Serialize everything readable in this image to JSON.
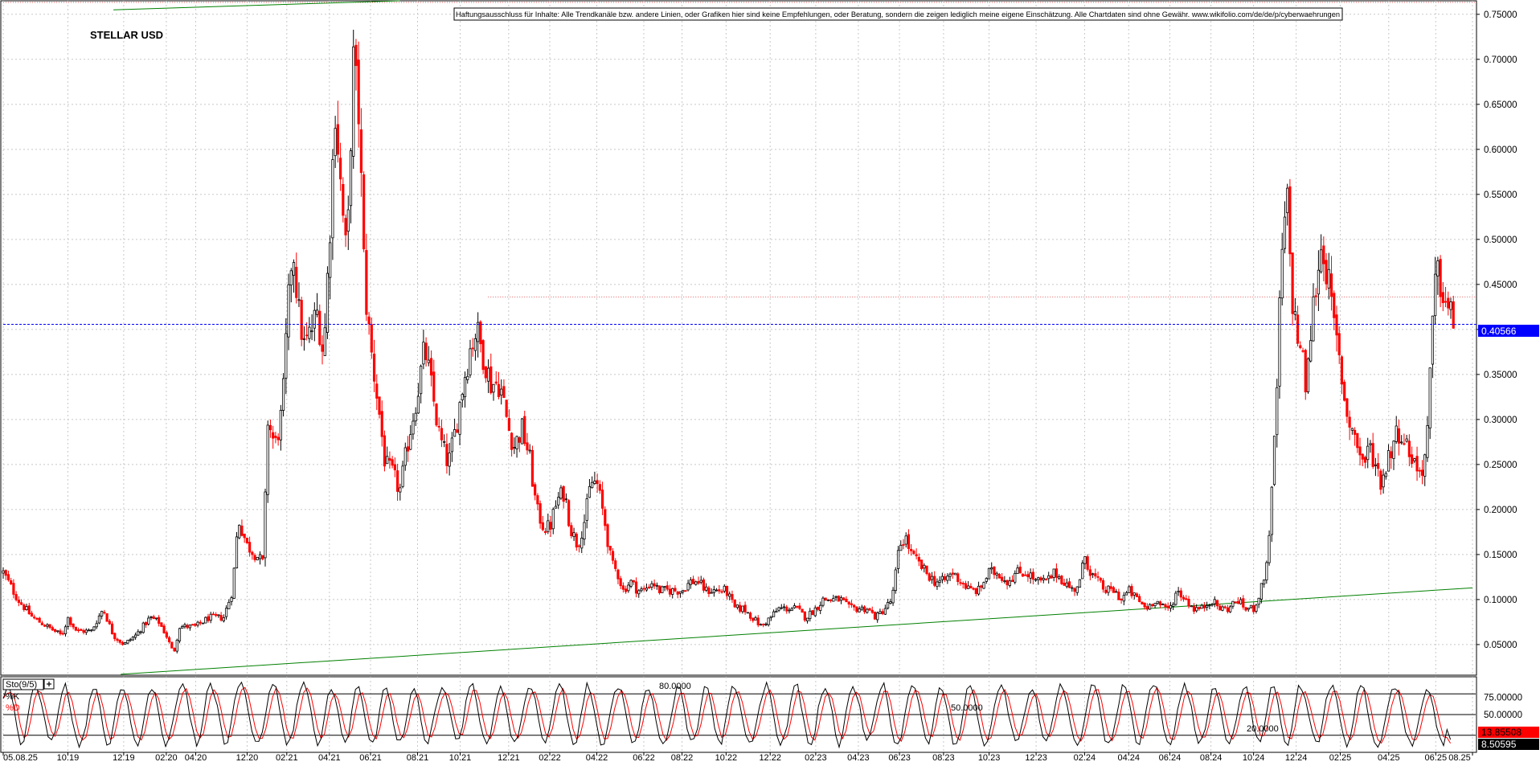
{
  "chart_data": [
    {
      "type": "candlestick",
      "title": "STELLAR USD",
      "disclaimer": "Haftungsausschluss für Inhalte: Alle Trendkanäle bzw. andere Linien, oder Grafiken hier sind keine Empfehlungen, oder Beratung, sondern die zeigen lediglich meine eigene Einschätzung. Alle Chartdaten sind ohne Gewähr. www.wikifolio.com/de/de/p/cyberwaehrungen",
      "y_axis_ticks": [
        "0.75000",
        "0.70000",
        "0.65000",
        "0.60000",
        "0.55000",
        "0.50000",
        "0.45000",
        "0.40000",
        "0.35000",
        "0.30000",
        "0.25000",
        "0.20000",
        "0.15000",
        "0.10000",
        "0.05000"
      ],
      "ylim": [
        0.016,
        0.765
      ],
      "x_axis_ticks": [
        "05.08.25",
        "10.19",
        "12.19",
        "02.20",
        "04.20",
        "12.20",
        "02.21",
        "04.21",
        "06.21",
        "08.21",
        "10.21",
        "12.21",
        "02.22",
        "04.22",
        "06.22",
        "08.22",
        "10.22",
        "12.22",
        "02.23",
        "04.23",
        "06.23",
        "08.23",
        "10.23",
        "12.23",
        "02.24",
        "04.24",
        "06.24",
        "08.24",
        "10.24",
        "12.24",
        "02.25",
        "04.25",
        "06.25",
        "08.25"
      ],
      "x_tick_positions": [
        0.0,
        0.044,
        0.082,
        0.111,
        0.131,
        0.166,
        0.193,
        0.222,
        0.25,
        0.282,
        0.311,
        0.344,
        0.372,
        0.404,
        0.436,
        0.462,
        0.492,
        0.522,
        0.553,
        0.582,
        0.61,
        0.64,
        0.671,
        0.703,
        0.736,
        0.766,
        0.794,
        0.822,
        0.851,
        0.88,
        0.91,
        0.943,
        0.975,
        1.0
      ],
      "current_price_label": "0.40566",
      "current_price": 0.40566,
      "reference_level": 0.436,
      "close_series": [
        [
          0.0,
          0.13
        ],
        [
          0.01,
          0.1
        ],
        [
          0.02,
          0.08
        ],
        [
          0.03,
          0.07
        ],
        [
          0.04,
          0.06
        ],
        [
          0.044,
          0.08
        ],
        [
          0.05,
          0.065
        ],
        [
          0.06,
          0.065
        ],
        [
          0.068,
          0.09
        ],
        [
          0.075,
          0.06
        ],
        [
          0.082,
          0.05
        ],
        [
          0.09,
          0.06
        ],
        [
          0.1,
          0.08
        ],
        [
          0.106,
          0.075
        ],
        [
          0.111,
          0.06
        ],
        [
          0.116,
          0.04
        ],
        [
          0.12,
          0.07
        ],
        [
          0.131,
          0.07
        ],
        [
          0.14,
          0.08
        ],
        [
          0.15,
          0.08
        ],
        [
          0.156,
          0.11
        ],
        [
          0.16,
          0.19
        ],
        [
          0.166,
          0.16
        ],
        [
          0.172,
          0.15
        ],
        [
          0.177,
          0.14
        ],
        [
          0.18,
          0.3
        ],
        [
          0.185,
          0.27
        ],
        [
          0.19,
          0.31
        ],
        [
          0.193,
          0.4
        ],
        [
          0.197,
          0.5
        ],
        [
          0.201,
          0.42
        ],
        [
          0.205,
          0.38
        ],
        [
          0.21,
          0.4
        ],
        [
          0.214,
          0.42
        ],
        [
          0.218,
          0.37
        ],
        [
          0.222,
          0.5
        ],
        [
          0.226,
          0.65
        ],
        [
          0.23,
          0.55
        ],
        [
          0.234,
          0.47
        ],
        [
          0.238,
          0.7
        ],
        [
          0.242,
          0.64
        ],
        [
          0.246,
          0.45
        ],
        [
          0.25,
          0.38
        ],
        [
          0.255,
          0.32
        ],
        [
          0.26,
          0.25
        ],
        [
          0.265,
          0.24
        ],
        [
          0.27,
          0.22
        ],
        [
          0.276,
          0.28
        ],
        [
          0.282,
          0.33
        ],
        [
          0.287,
          0.38
        ],
        [
          0.292,
          0.33
        ],
        [
          0.297,
          0.28
        ],
        [
          0.303,
          0.25
        ],
        [
          0.308,
          0.29
        ],
        [
          0.313,
          0.34
        ],
        [
          0.318,
          0.38
        ],
        [
          0.322,
          0.4
        ],
        [
          0.327,
          0.37
        ],
        [
          0.332,
          0.34
        ],
        [
          0.338,
          0.34
        ],
        [
          0.344,
          0.29
        ],
        [
          0.348,
          0.27
        ],
        [
          0.353,
          0.29
        ],
        [
          0.358,
          0.26
        ],
        [
          0.363,
          0.2
        ],
        [
          0.368,
          0.18
        ],
        [
          0.372,
          0.18
        ],
        [
          0.377,
          0.21
        ],
        [
          0.382,
          0.22
        ],
        [
          0.386,
          0.18
        ],
        [
          0.391,
          0.16
        ],
        [
          0.396,
          0.19
        ],
        [
          0.4,
          0.23
        ],
        [
          0.404,
          0.23
        ],
        [
          0.409,
          0.19
        ],
        [
          0.414,
          0.14
        ],
        [
          0.418,
          0.13
        ],
        [
          0.422,
          0.11
        ],
        [
          0.427,
          0.12
        ],
        [
          0.432,
          0.11
        ],
        [
          0.436,
          0.11
        ],
        [
          0.442,
          0.12
        ],
        [
          0.446,
          0.11
        ],
        [
          0.452,
          0.11
        ],
        [
          0.457,
          0.11
        ],
        [
          0.462,
          0.11
        ],
        [
          0.468,
          0.12
        ],
        [
          0.473,
          0.12
        ],
        [
          0.478,
          0.11
        ],
        [
          0.483,
          0.11
        ],
        [
          0.488,
          0.11
        ],
        [
          0.492,
          0.11
        ],
        [
          0.498,
          0.09
        ],
        [
          0.504,
          0.09
        ],
        [
          0.51,
          0.08
        ],
        [
          0.516,
          0.07
        ],
        [
          0.522,
          0.08
        ],
        [
          0.528,
          0.09
        ],
        [
          0.534,
          0.09
        ],
        [
          0.54,
          0.09
        ],
        [
          0.546,
          0.08
        ],
        [
          0.553,
          0.09
        ],
        [
          0.558,
          0.1
        ],
        [
          0.564,
          0.1
        ],
        [
          0.57,
          0.1
        ],
        [
          0.576,
          0.09
        ],
        [
          0.582,
          0.09
        ],
        [
          0.588,
          0.09
        ],
        [
          0.594,
          0.08
        ],
        [
          0.6,
          0.09
        ],
        [
          0.605,
          0.1
        ],
        [
          0.61,
          0.16
        ],
        [
          0.614,
          0.17
        ],
        [
          0.618,
          0.15
        ],
        [
          0.623,
          0.14
        ],
        [
          0.628,
          0.13
        ],
        [
          0.634,
          0.12
        ],
        [
          0.64,
          0.12
        ],
        [
          0.646,
          0.13
        ],
        [
          0.652,
          0.12
        ],
        [
          0.658,
          0.11
        ],
        [
          0.664,
          0.11
        ],
        [
          0.671,
          0.13
        ],
        [
          0.677,
          0.13
        ],
        [
          0.683,
          0.12
        ],
        [
          0.69,
          0.13
        ],
        [
          0.697,
          0.13
        ],
        [
          0.703,
          0.12
        ],
        [
          0.71,
          0.12
        ],
        [
          0.716,
          0.13
        ],
        [
          0.722,
          0.12
        ],
        [
          0.728,
          0.11
        ],
        [
          0.733,
          0.12
        ],
        [
          0.736,
          0.15
        ],
        [
          0.74,
          0.13
        ],
        [
          0.745,
          0.12
        ],
        [
          0.75,
          0.11
        ],
        [
          0.756,
          0.11
        ],
        [
          0.761,
          0.1
        ],
        [
          0.766,
          0.11
        ],
        [
          0.772,
          0.1
        ],
        [
          0.778,
          0.09
        ],
        [
          0.784,
          0.1
        ],
        [
          0.79,
          0.09
        ],
        [
          0.794,
          0.09
        ],
        [
          0.799,
          0.11
        ],
        [
          0.805,
          0.1
        ],
        [
          0.81,
          0.09
        ],
        [
          0.816,
          0.09
        ],
        [
          0.822,
          0.1
        ],
        [
          0.828,
          0.09
        ],
        [
          0.834,
          0.09
        ],
        [
          0.84,
          0.1
        ],
        [
          0.845,
          0.09
        ],
        [
          0.851,
          0.09
        ],
        [
          0.856,
          0.11
        ],
        [
          0.86,
          0.14
        ],
        [
          0.864,
          0.23
        ],
        [
          0.867,
          0.34
        ],
        [
          0.87,
          0.48
        ],
        [
          0.874,
          0.54
        ],
        [
          0.877,
          0.44
        ],
        [
          0.88,
          0.4
        ],
        [
          0.884,
          0.37
        ],
        [
          0.887,
          0.33
        ],
        [
          0.89,
          0.4
        ],
        [
          0.894,
          0.46
        ],
        [
          0.898,
          0.5
        ],
        [
          0.902,
          0.45
        ],
        [
          0.906,
          0.4
        ],
        [
          0.91,
          0.36
        ],
        [
          0.914,
          0.31
        ],
        [
          0.918,
          0.29
        ],
        [
          0.922,
          0.27
        ],
        [
          0.926,
          0.25
        ],
        [
          0.93,
          0.27
        ],
        [
          0.934,
          0.25
        ],
        [
          0.938,
          0.23
        ],
        [
          0.943,
          0.26
        ],
        [
          0.947,
          0.28
        ],
        [
          0.951,
          0.29
        ],
        [
          0.955,
          0.27
        ],
        [
          0.959,
          0.26
        ],
        [
          0.963,
          0.24
        ],
        [
          0.967,
          0.25
        ],
        [
          0.97,
          0.3
        ],
        [
          0.972,
          0.38
        ],
        [
          0.975,
          0.46
        ],
        [
          0.979,
          0.45
        ],
        [
          0.983,
          0.42
        ],
        [
          0.987,
          0.41
        ]
      ],
      "trendlines": [
        {
          "name": "upper",
          "points": [
            [
              0.075,
              0.755
            ],
            [
              0.27,
              0.765
            ]
          ]
        },
        {
          "name": "lower",
          "points": [
            [
              0.08,
              0.017
            ],
            [
              1.0,
              0.113
            ]
          ]
        }
      ]
    },
    {
      "type": "line",
      "indicator_label": "Sto(9/5)",
      "series": [
        {
          "name": "%K",
          "color": "#000000"
        },
        {
          "name": "%D",
          "color": "#ff0000"
        }
      ],
      "levels": [
        {
          "value": 80,
          "label": "80.0000"
        },
        {
          "value": 50,
          "label": "50.0000"
        },
        {
          "value": 20,
          "label": "20.0000"
        }
      ],
      "y_axis_ticks": [
        "75.00000",
        "50.00000",
        "25.00000"
      ],
      "ylim": [
        0,
        100
      ],
      "last_k_label": "13.85508",
      "last_d_label": "8.50595",
      "last_k": 13.85508,
      "last_d": 8.50595
    }
  ],
  "colors": {
    "bear": "#ff0000",
    "bull_body": "#ffffff",
    "bull_outline": "#000000",
    "trendline": "#008000",
    "price_line": "#0000ff",
    "grid": "#c8c8c8",
    "price_label_bg": "#0000ff",
    "k_label_bg": "#ff0000",
    "d_label_bg": "#000000"
  }
}
